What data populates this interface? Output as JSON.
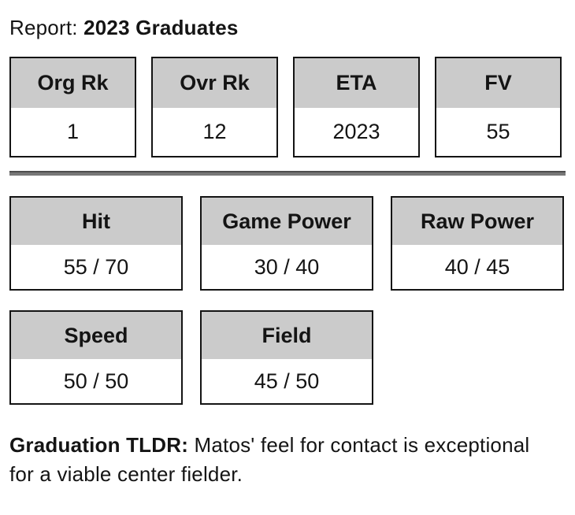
{
  "report": {
    "title_prefix": "Report:",
    "title_value": "2023 Graduates"
  },
  "summary_cells": [
    {
      "label": "Org Rk",
      "value": "1"
    },
    {
      "label": "Ovr Rk",
      "value": "12"
    },
    {
      "label": "ETA",
      "value": "2023"
    },
    {
      "label": "FV",
      "value": "55"
    }
  ],
  "tool_grade_cells": [
    {
      "label": "Hit",
      "value": "55 / 70"
    },
    {
      "label": "Game Power",
      "value": "30 / 40"
    },
    {
      "label": "Raw Power",
      "value": "40 / 45"
    },
    {
      "label": "Speed",
      "value": "50 / 50"
    },
    {
      "label": "Field",
      "value": "45 / 50"
    }
  ],
  "tldr": {
    "label": "Graduation TLDR:",
    "text": " Matos' feel for contact is exceptional for a viable center fielder."
  },
  "colors": {
    "cell_header_bg": "#cbcbcb",
    "cell_border": "#141414",
    "divider": "#787878",
    "text": "#141414",
    "background": "#ffffff"
  }
}
